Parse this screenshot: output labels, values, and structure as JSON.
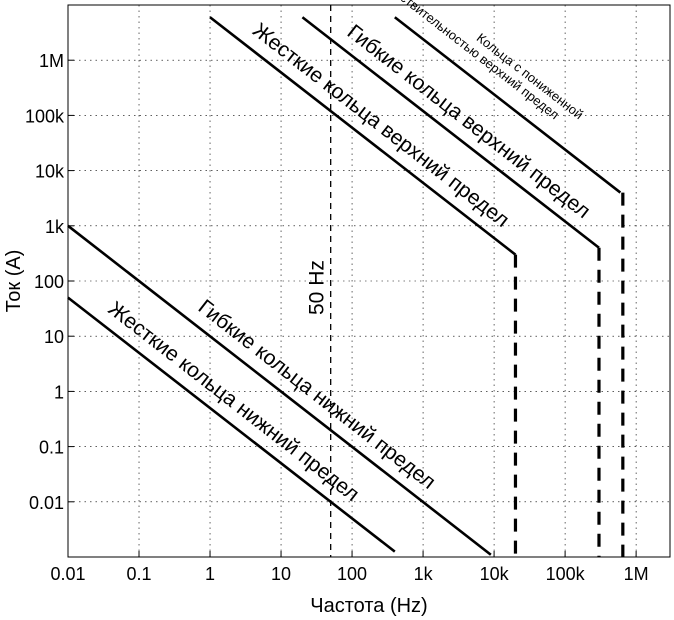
{
  "chart_data": {
    "type": "line",
    "title": "",
    "xlabel": "Частота (Hz)",
    "ylabel": "Ток (A)",
    "xscale": "log",
    "yscale": "log",
    "xlim": [
      0.01,
      3000000
    ],
    "ylim": [
      0.001,
      10000000
    ],
    "grid": true,
    "x_ticks": [
      {
        "value": 0.01,
        "label": "0.01"
      },
      {
        "value": 0.1,
        "label": "0.1"
      },
      {
        "value": 1,
        "label": "1"
      },
      {
        "value": 10,
        "label": "10"
      },
      {
        "value": 100,
        "label": "100"
      },
      {
        "value": 1000,
        "label": "1k"
      },
      {
        "value": 10000,
        "label": "10k"
      },
      {
        "value": 100000,
        "label": "100k"
      },
      {
        "value": 1000000,
        "label": "1M"
      }
    ],
    "y_ticks": [
      {
        "value": 0.01,
        "label": "0.01"
      },
      {
        "value": 0.1,
        "label": "0.1"
      },
      {
        "value": 1,
        "label": "1"
      },
      {
        "value": 10,
        "label": "10"
      },
      {
        "value": 100,
        "label": "100"
      },
      {
        "value": 1000,
        "label": "1k"
      },
      {
        "value": 10000,
        "label": "10k"
      },
      {
        "value": 100000,
        "label": "100k"
      },
      {
        "value": 1000000,
        "label": "1M"
      }
    ],
    "series": [
      {
        "name": "Жесткие кольца нижний предел",
        "points": [
          [
            0.01,
            50
          ],
          [
            400,
            0.00125
          ]
        ]
      },
      {
        "name": "Гибкие кольца нижний предел",
        "points": [
          [
            0.01,
            1000
          ],
          [
            9000,
            0.0011
          ]
        ]
      },
      {
        "name": "Жесткие кольца верхний предел",
        "points": [
          [
            1,
            6000000
          ],
          [
            20000,
            300
          ]
        ],
        "cutoff_x": 20000
      },
      {
        "name": "Гибкие кольца верхний предел",
        "points": [
          [
            20,
            6000000
          ],
          [
            300000,
            400
          ]
        ],
        "cutoff_x": 300000
      },
      {
        "name": "Кольца с пониженной чувствительностью верхний предел",
        "points": [
          [
            400,
            6000000
          ],
          [
            600000,
            4000
          ]
        ],
        "cutoff_x": 650000
      }
    ],
    "markers": [
      {
        "x": 50,
        "label": "50 Hz"
      }
    ]
  }
}
